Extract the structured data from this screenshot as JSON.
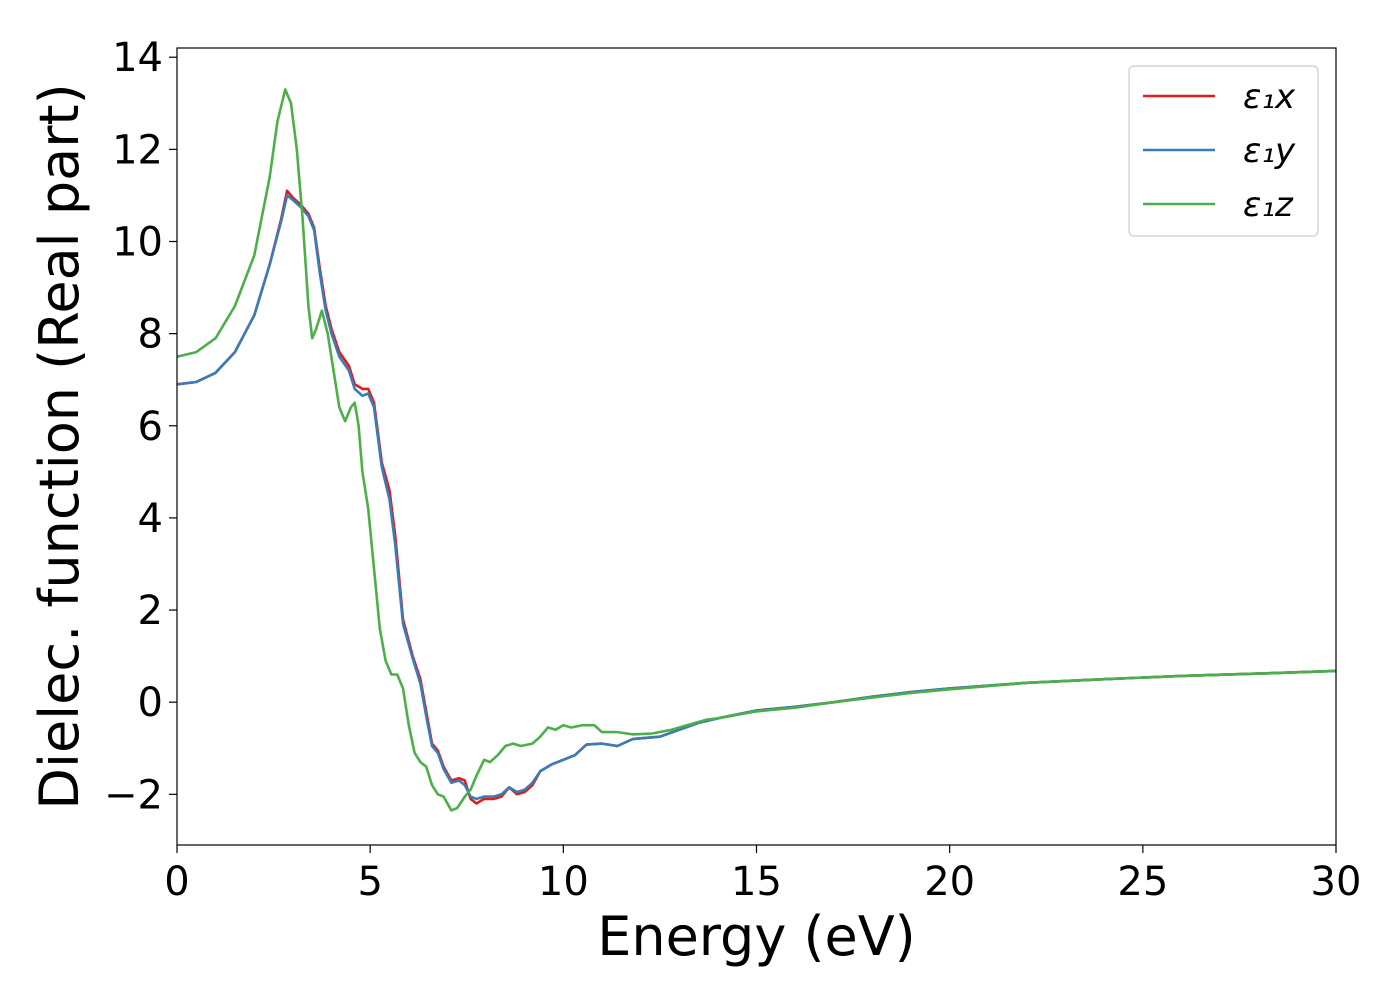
{
  "chart_data": {
    "type": "line",
    "title": "",
    "xlabel": "Energy (eV)",
    "ylabel": "Dielec. function (Real part)",
    "xlim": [
      0,
      30
    ],
    "ylim": [
      -3.1,
      14.2
    ],
    "xticks": [
      0,
      5,
      10,
      15,
      20,
      25,
      30
    ],
    "xtick_labels": [
      "0",
      "5",
      "10",
      "15",
      "20",
      "25",
      "30"
    ],
    "yticks": [
      -2,
      0,
      2,
      4,
      6,
      8,
      10,
      12,
      14
    ],
    "ytick_labels": [
      "−2",
      "0",
      "2",
      "4",
      "6",
      "8",
      "10",
      "12",
      "14"
    ],
    "grid": false,
    "legend_position": "top-right",
    "series": [
      {
        "name": "ε₁x",
        "color": "#e41a1c",
        "points": [
          [
            0,
            6.9
          ],
          [
            0.5,
            6.95
          ],
          [
            1.0,
            7.15
          ],
          [
            1.5,
            7.6
          ],
          [
            2.0,
            8.4
          ],
          [
            2.4,
            9.5
          ],
          [
            2.7,
            10.5
          ],
          [
            2.85,
            11.1
          ],
          [
            3.0,
            10.95
          ],
          [
            3.2,
            10.8
          ],
          [
            3.4,
            10.6
          ],
          [
            3.55,
            10.3
          ],
          [
            3.7,
            9.4
          ],
          [
            3.85,
            8.6
          ],
          [
            4.0,
            8.1
          ],
          [
            4.2,
            7.6
          ],
          [
            4.45,
            7.3
          ],
          [
            4.6,
            6.9
          ],
          [
            4.8,
            6.8
          ],
          [
            4.95,
            6.8
          ],
          [
            5.1,
            6.5
          ],
          [
            5.3,
            5.2
          ],
          [
            5.5,
            4.6
          ],
          [
            5.65,
            3.6
          ],
          [
            5.85,
            1.8
          ],
          [
            6.1,
            1.0
          ],
          [
            6.3,
            0.5
          ],
          [
            6.45,
            -0.2
          ],
          [
            6.6,
            -0.9
          ],
          [
            6.75,
            -1.05
          ],
          [
            6.9,
            -1.4
          ],
          [
            7.1,
            -1.7
          ],
          [
            7.3,
            -1.65
          ],
          [
            7.45,
            -1.7
          ],
          [
            7.6,
            -2.1
          ],
          [
            7.75,
            -2.2
          ],
          [
            7.95,
            -2.1
          ],
          [
            8.2,
            -2.1
          ],
          [
            8.4,
            -2.05
          ],
          [
            8.6,
            -1.85
          ],
          [
            8.8,
            -2.0
          ],
          [
            9.0,
            -1.95
          ],
          [
            9.2,
            -1.8
          ],
          [
            9.4,
            -1.5
          ],
          [
            9.7,
            -1.35
          ],
          [
            10.0,
            -1.25
          ],
          [
            10.3,
            -1.15
          ],
          [
            10.6,
            -0.92
          ],
          [
            11.0,
            -0.9
          ],
          [
            11.4,
            -0.95
          ],
          [
            11.8,
            -0.8
          ],
          [
            12.5,
            -0.75
          ],
          [
            13.0,
            -0.6
          ],
          [
            13.5,
            -0.45
          ],
          [
            14.0,
            -0.35
          ],
          [
            15.0,
            -0.18
          ],
          [
            16.0,
            -0.1
          ],
          [
            17.0,
            0.0
          ],
          [
            18.0,
            0.12
          ],
          [
            19.0,
            0.22
          ],
          [
            20.0,
            0.3
          ],
          [
            22.0,
            0.42
          ],
          [
            24.0,
            0.5
          ],
          [
            26.0,
            0.57
          ],
          [
            28.0,
            0.62
          ],
          [
            30.0,
            0.68
          ]
        ]
      },
      {
        "name": "ε₁y",
        "color": "#377eb8",
        "points": [
          [
            0,
            6.9
          ],
          [
            0.5,
            6.95
          ],
          [
            1.0,
            7.15
          ],
          [
            1.5,
            7.6
          ],
          [
            2.0,
            8.4
          ],
          [
            2.4,
            9.5
          ],
          [
            2.7,
            10.45
          ],
          [
            2.85,
            11.0
          ],
          [
            3.0,
            10.9
          ],
          [
            3.2,
            10.75
          ],
          [
            3.4,
            10.55
          ],
          [
            3.55,
            10.25
          ],
          [
            3.7,
            9.3
          ],
          [
            3.85,
            8.5
          ],
          [
            4.0,
            8.0
          ],
          [
            4.2,
            7.5
          ],
          [
            4.45,
            7.2
          ],
          [
            4.6,
            6.8
          ],
          [
            4.8,
            6.65
          ],
          [
            4.95,
            6.7
          ],
          [
            5.1,
            6.4
          ],
          [
            5.3,
            5.1
          ],
          [
            5.5,
            4.4
          ],
          [
            5.65,
            3.4
          ],
          [
            5.85,
            1.7
          ],
          [
            6.1,
            0.95
          ],
          [
            6.3,
            0.4
          ],
          [
            6.45,
            -0.3
          ],
          [
            6.6,
            -0.95
          ],
          [
            6.75,
            -1.1
          ],
          [
            6.9,
            -1.45
          ],
          [
            7.1,
            -1.75
          ],
          [
            7.3,
            -1.7
          ],
          [
            7.45,
            -1.8
          ],
          [
            7.6,
            -2.05
          ],
          [
            7.75,
            -2.1
          ],
          [
            7.95,
            -2.05
          ],
          [
            8.2,
            -2.05
          ],
          [
            8.4,
            -2.0
          ],
          [
            8.6,
            -1.85
          ],
          [
            8.8,
            -1.95
          ],
          [
            9.0,
            -1.9
          ],
          [
            9.2,
            -1.75
          ],
          [
            9.4,
            -1.5
          ],
          [
            9.7,
            -1.35
          ],
          [
            10.0,
            -1.25
          ],
          [
            10.3,
            -1.15
          ],
          [
            10.6,
            -0.92
          ],
          [
            11.0,
            -0.9
          ],
          [
            11.4,
            -0.95
          ],
          [
            11.8,
            -0.8
          ],
          [
            12.5,
            -0.75
          ],
          [
            13.0,
            -0.6
          ],
          [
            13.5,
            -0.45
          ],
          [
            14.0,
            -0.35
          ],
          [
            15.0,
            -0.18
          ],
          [
            16.0,
            -0.1
          ],
          [
            17.0,
            0.0
          ],
          [
            18.0,
            0.12
          ],
          [
            19.0,
            0.22
          ],
          [
            20.0,
            0.3
          ],
          [
            22.0,
            0.42
          ],
          [
            24.0,
            0.5
          ],
          [
            26.0,
            0.57
          ],
          [
            28.0,
            0.62
          ],
          [
            30.0,
            0.68
          ]
        ]
      },
      {
        "name": "ε₁z",
        "color": "#4daf4a",
        "points": [
          [
            0,
            7.5
          ],
          [
            0.5,
            7.6
          ],
          [
            1.0,
            7.9
          ],
          [
            1.5,
            8.6
          ],
          [
            2.0,
            9.7
          ],
          [
            2.4,
            11.4
          ],
          [
            2.6,
            12.6
          ],
          [
            2.8,
            13.3
          ],
          [
            2.95,
            13.0
          ],
          [
            3.1,
            12.0
          ],
          [
            3.25,
            10.5
          ],
          [
            3.4,
            8.6
          ],
          [
            3.5,
            7.9
          ],
          [
            3.6,
            8.1
          ],
          [
            3.75,
            8.5
          ],
          [
            3.9,
            8.0
          ],
          [
            4.05,
            7.2
          ],
          [
            4.2,
            6.4
          ],
          [
            4.35,
            6.1
          ],
          [
            4.5,
            6.4
          ],
          [
            4.6,
            6.5
          ],
          [
            4.7,
            6.0
          ],
          [
            4.8,
            5.0
          ],
          [
            4.95,
            4.2
          ],
          [
            5.1,
            2.9
          ],
          [
            5.25,
            1.6
          ],
          [
            5.4,
            0.9
          ],
          [
            5.55,
            0.6
          ],
          [
            5.7,
            0.6
          ],
          [
            5.85,
            0.3
          ],
          [
            6.0,
            -0.5
          ],
          [
            6.15,
            -1.1
          ],
          [
            6.3,
            -1.3
          ],
          [
            6.45,
            -1.4
          ],
          [
            6.6,
            -1.8
          ],
          [
            6.75,
            -2.0
          ],
          [
            6.9,
            -2.05
          ],
          [
            7.1,
            -2.35
          ],
          [
            7.25,
            -2.3
          ],
          [
            7.45,
            -2.05
          ],
          [
            7.6,
            -1.9
          ],
          [
            7.75,
            -1.6
          ],
          [
            7.95,
            -1.25
          ],
          [
            8.1,
            -1.3
          ],
          [
            8.3,
            -1.15
          ],
          [
            8.5,
            -0.95
          ],
          [
            8.7,
            -0.9
          ],
          [
            8.9,
            -0.95
          ],
          [
            9.2,
            -0.9
          ],
          [
            9.4,
            -0.75
          ],
          [
            9.6,
            -0.55
          ],
          [
            9.8,
            -0.6
          ],
          [
            10.0,
            -0.5
          ],
          [
            10.2,
            -0.55
          ],
          [
            10.5,
            -0.5
          ],
          [
            10.8,
            -0.5
          ],
          [
            11.0,
            -0.65
          ],
          [
            11.4,
            -0.65
          ],
          [
            11.8,
            -0.7
          ],
          [
            12.3,
            -0.68
          ],
          [
            12.8,
            -0.6
          ],
          [
            13.2,
            -0.5
          ],
          [
            13.7,
            -0.38
          ],
          [
            14.0,
            -0.35
          ],
          [
            15.0,
            -0.2
          ],
          [
            16.0,
            -0.12
          ],
          [
            17.0,
            0.0
          ],
          [
            18.0,
            0.1
          ],
          [
            19.0,
            0.2
          ],
          [
            20.0,
            0.28
          ],
          [
            22.0,
            0.42
          ],
          [
            24.0,
            0.5
          ],
          [
            26.0,
            0.57
          ],
          [
            28.0,
            0.62
          ],
          [
            30.0,
            0.68
          ]
        ]
      }
    ]
  }
}
